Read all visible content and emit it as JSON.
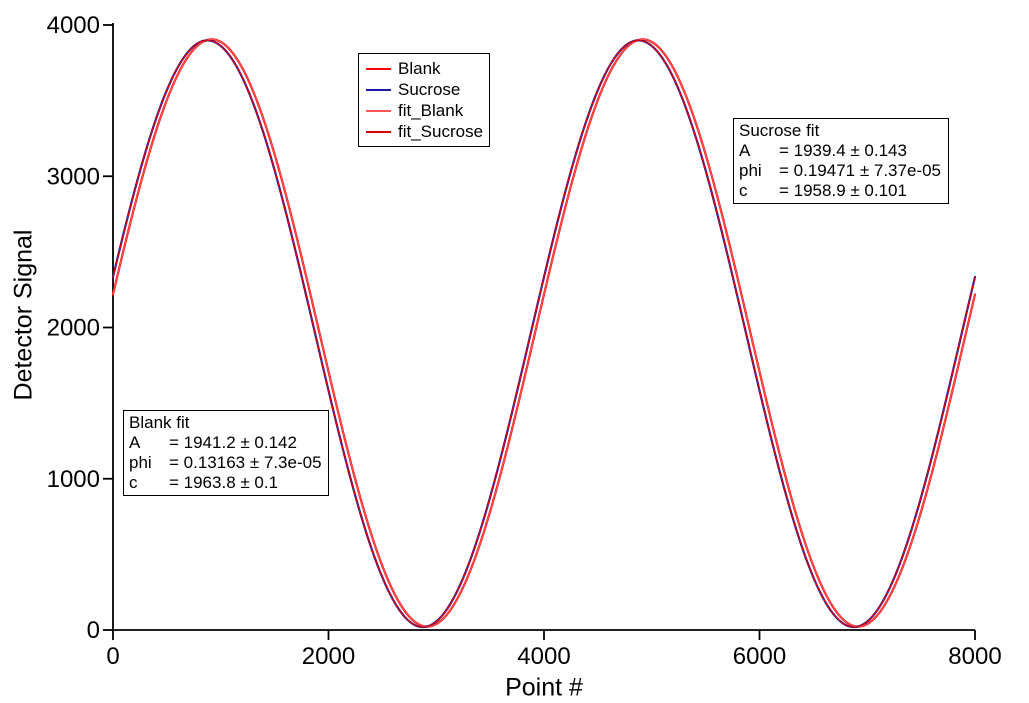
{
  "chart_data": {
    "type": "line",
    "title": "",
    "xlabel": "Point #",
    "ylabel": "Detector Signal",
    "xlim": [
      0,
      8000
    ],
    "ylim": [
      0,
      4000
    ],
    "x_ticks": [
      "0",
      "2000",
      "4000",
      "6000",
      "8000"
    ],
    "y_ticks": [
      "0",
      "1000",
      "2000",
      "3000",
      "4000"
    ],
    "grid": false,
    "legend_position": "inside-top-center",
    "model": "y = A*sin(2*pi*x/period + phi) + c",
    "period": 4000,
    "x_step": 10,
    "series": [
      {
        "name": "Blank",
        "color": "#ff0000",
        "width": 2.2,
        "A": 1941.2,
        "phi": 0.13163,
        "c": 1963.8
      },
      {
        "name": "Sucrose",
        "color": "#1a1aaa",
        "width": 2.2,
        "A": 1939.4,
        "phi": 0.19471,
        "c": 1958.9
      },
      {
        "name": "fit_Blank",
        "color": "#ff5555",
        "width": 1.2,
        "A": 1941.2,
        "phi": 0.13163,
        "c": 1963.8
      },
      {
        "name": "fit_Sucrose",
        "color": "#dc0000",
        "width": 1.2,
        "A": 1939.4,
        "phi": 0.19471,
        "c": 1958.9
      }
    ],
    "annotations": [
      {
        "id": "sucrose",
        "title": "Sucrose fit",
        "rows": [
          {
            "param": "A",
            "value": "= 1939.4 ± 0.143"
          },
          {
            "param": "phi",
            "value": "= 0.19471 ± 7.37e-05"
          },
          {
            "param": "c",
            "value": "= 1958.9 ± 0.101"
          }
        ]
      },
      {
        "id": "blank",
        "title": "Blank fit",
        "rows": [
          {
            "param": "A",
            "value": "= 1941.2 ± 0.142"
          },
          {
            "param": "phi",
            "value": "= 0.13163 ± 7.3e-05"
          },
          {
            "param": "c",
            "value": "= 1963.8 ± 0.1"
          }
        ]
      }
    ],
    "axis_color": "#000000",
    "background_color": "#ffffff"
  }
}
